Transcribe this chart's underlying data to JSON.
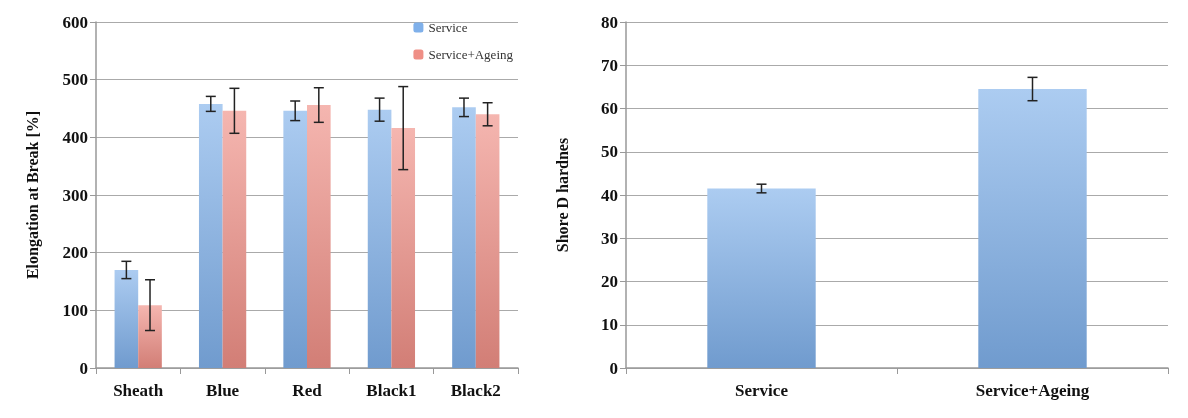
{
  "chart_data": [
    {
      "type": "bar",
      "ylabel": "Elongation at Break [%]",
      "categories": [
        "Sheath",
        "Blue",
        "Red",
        "Black1",
        "Black2"
      ],
      "ylim": [
        0,
        600
      ],
      "yticks": [
        0,
        100,
        200,
        300,
        400,
        500,
        600
      ],
      "grid": "y",
      "legend": "top right",
      "series": [
        {
          "name": "Service",
          "color": "#7fb0ea",
          "values": [
            170,
            458,
            446,
            448,
            452
          ],
          "errors": [
            15,
            13,
            17,
            20,
            16
          ]
        },
        {
          "name": "Service+Ageing",
          "color": "#ef8f86",
          "values": [
            109,
            446,
            456,
            416,
            440
          ],
          "errors": [
            44,
            39,
            30,
            72,
            20
          ]
        }
      ]
    },
    {
      "type": "bar",
      "ylabel": "Shore D hardnes",
      "categories": [
        "Service",
        "Service+Ageing"
      ],
      "ylim": [
        0,
        80
      ],
      "yticks": [
        0,
        10,
        20,
        30,
        40,
        50,
        60,
        70,
        80
      ],
      "grid": "y",
      "series": [
        {
          "color": "#7fb0ea",
          "values": [
            41.5,
            64.5
          ],
          "errors": [
            1,
            2.7
          ]
        }
      ]
    }
  ]
}
